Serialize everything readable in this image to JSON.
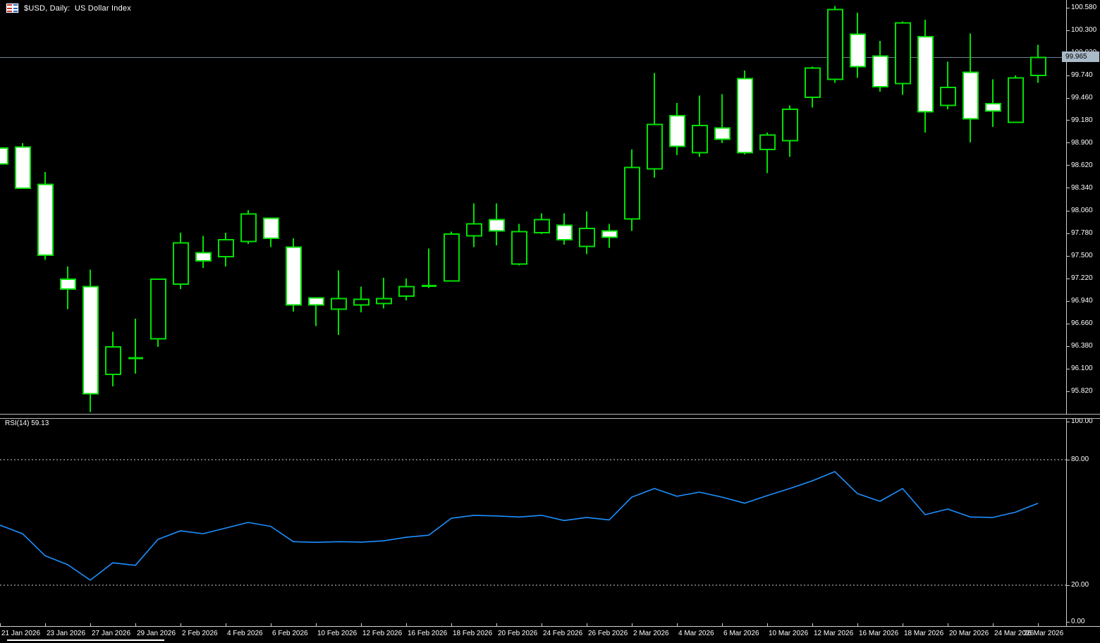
{
  "header": {
    "title": "$USD, Daily:  US Dollar Index"
  },
  "price_tag": "99.965",
  "rsi_label": "RSI(14) 59.13",
  "colors": {
    "background": "#000000",
    "candle_outline": "#00e000",
    "bull_fill": "#000000",
    "bear_fill": "#ffffff",
    "rsi_line": "#1e90ff",
    "level_line": "#d0d0d0",
    "price_line": "#708090",
    "axis_text": "#ffffff",
    "tag_bg": "#a9bac9"
  },
  "chart_data": {
    "type": "candlestick",
    "symbol": "$USD",
    "timeframe": "Daily",
    "title": "US Dollar Index",
    "ylim": [
      95.56,
      100.72
    ],
    "grid": false,
    "current_price": 99.965,
    "price_axis_ticks": [
      "100.580",
      "100.300",
      "100.020",
      "99.740",
      "99.460",
      "99.180",
      "98.900",
      "98.620",
      "98.340",
      "98.060",
      "97.780",
      "97.500",
      "97.220",
      "96.940",
      "96.660",
      "96.380",
      "96.100",
      "95.820"
    ],
    "x_axis_labels": [
      "21 Jan 2026",
      "23 Jan 2026",
      "27 Jan 2026",
      "29 Jan 2026",
      "2 Feb 2026",
      "4 Feb 2026",
      "6 Feb 2026",
      "10 Feb 2026",
      "12 Feb 2026",
      "16 Feb 2026",
      "18 Feb 2026",
      "20 Feb 2026",
      "24 Feb 2026",
      "26 Feb 2026",
      "2 Mar 2026",
      "4 Mar 2026",
      "6 Mar 2026",
      "10 Mar 2026",
      "12 Mar 2026",
      "16 Mar 2026",
      "18 Mar 2026",
      "20 Mar 2026",
      "24 Mar 2026",
      "26 Mar 2026"
    ],
    "bars": [
      {
        "date": "21 Jan 2026",
        "o": 98.84,
        "h": 98.84,
        "l": 98.64,
        "c": 98.64
      },
      {
        "date": "22 Jan 2026",
        "o": 98.85,
        "h": 98.9,
        "l": 98.34,
        "c": 98.34
      },
      {
        "date": "23 Jan 2026",
        "o": 98.39,
        "h": 98.54,
        "l": 97.45,
        "c": 97.51
      },
      {
        "date": "26 Jan 2026",
        "o": 97.21,
        "h": 97.37,
        "l": 96.84,
        "c": 97.09
      },
      {
        "date": "27 Jan 2026",
        "o": 97.12,
        "h": 97.33,
        "l": 95.56,
        "c": 95.79
      },
      {
        "date": "28 Jan 2026",
        "o": 96.03,
        "h": 96.56,
        "l": 95.88,
        "c": 96.37
      },
      {
        "date": "29 Jan 2026",
        "o": 96.23,
        "h": 96.72,
        "l": 96.04,
        "c": 96.23
      },
      {
        "date": "30 Jan 2026",
        "o": 96.47,
        "h": 97.21,
        "l": 96.37,
        "c": 97.21
      },
      {
        "date": "2 Feb 2026",
        "o": 97.15,
        "h": 97.79,
        "l": 97.09,
        "c": 97.66
      },
      {
        "date": "3 Feb 2026",
        "o": 97.54,
        "h": 97.75,
        "l": 97.35,
        "c": 97.44
      },
      {
        "date": "4 Feb 2026",
        "o": 97.49,
        "h": 97.79,
        "l": 97.37,
        "c": 97.7
      },
      {
        "date": "5 Feb 2026",
        "o": 97.68,
        "h": 98.07,
        "l": 97.65,
        "c": 98.02
      },
      {
        "date": "6 Feb 2026",
        "o": 97.97,
        "h": 97.97,
        "l": 97.61,
        "c": 97.72
      },
      {
        "date": "9 Feb 2026",
        "o": 97.61,
        "h": 97.72,
        "l": 96.81,
        "c": 96.89
      },
      {
        "date": "10 Feb 2026",
        "o": 96.98,
        "h": 96.98,
        "l": 96.63,
        "c": 96.89
      },
      {
        "date": "11 Feb 2026",
        "o": 96.84,
        "h": 97.32,
        "l": 96.52,
        "c": 96.97
      },
      {
        "date": "12 Feb 2026",
        "o": 96.89,
        "h": 97.12,
        "l": 96.8,
        "c": 96.96
      },
      {
        "date": "13 Feb 2026",
        "o": 96.91,
        "h": 97.23,
        "l": 96.85,
        "c": 96.97
      },
      {
        "date": "16 Feb 2026",
        "o": 97.0,
        "h": 97.22,
        "l": 96.95,
        "c": 97.12
      },
      {
        "date": "17 Feb 2026",
        "o": 97.13,
        "h": 97.59,
        "l": 97.1,
        "c": 97.13
      },
      {
        "date": "18 Feb 2026",
        "o": 97.19,
        "h": 97.8,
        "l": 97.19,
        "c": 97.77
      },
      {
        "date": "19 Feb 2026",
        "o": 97.75,
        "h": 98.15,
        "l": 97.61,
        "c": 97.9
      },
      {
        "date": "20 Feb 2026",
        "o": 97.95,
        "h": 98.15,
        "l": 97.63,
        "c": 97.81
      },
      {
        "date": "23 Feb 2026",
        "o": 97.4,
        "h": 97.9,
        "l": 97.38,
        "c": 97.8
      },
      {
        "date": "24 Feb 2026",
        "o": 97.79,
        "h": 98.03,
        "l": 97.77,
        "c": 97.95
      },
      {
        "date": "25 Feb 2026",
        "o": 97.88,
        "h": 98.03,
        "l": 97.64,
        "c": 97.7
      },
      {
        "date": "26 Feb 2026",
        "o": 97.62,
        "h": 98.05,
        "l": 97.52,
        "c": 97.84
      },
      {
        "date": "27 Feb 2026",
        "o": 97.81,
        "h": 97.9,
        "l": 97.6,
        "c": 97.73
      },
      {
        "date": "2 Mar 2026",
        "o": 97.96,
        "h": 98.82,
        "l": 97.81,
        "c": 98.6
      },
      {
        "date": "3 Mar 2026",
        "o": 98.58,
        "h": 99.77,
        "l": 98.47,
        "c": 99.13
      },
      {
        "date": "4 Mar 2026",
        "o": 99.24,
        "h": 99.4,
        "l": 98.75,
        "c": 98.86
      },
      {
        "date": "5 Mar 2026",
        "o": 98.78,
        "h": 99.49,
        "l": 98.73,
        "c": 99.12
      },
      {
        "date": "6 Mar 2026",
        "o": 99.09,
        "h": 99.51,
        "l": 98.9,
        "c": 98.95
      },
      {
        "date": "9 Mar 2026",
        "o": 99.7,
        "h": 99.8,
        "l": 98.76,
        "c": 98.78
      },
      {
        "date": "10 Mar 2026",
        "o": 98.82,
        "h": 99.03,
        "l": 98.53,
        "c": 99.0
      },
      {
        "date": "11 Mar 2026",
        "o": 98.93,
        "h": 99.37,
        "l": 98.73,
        "c": 99.32
      },
      {
        "date": "12 Mar 2026",
        "o": 99.47,
        "h": 99.85,
        "l": 99.34,
        "c": 99.83
      },
      {
        "date": "13 Mar 2026",
        "o": 99.69,
        "h": 100.6,
        "l": 99.65,
        "c": 100.56
      },
      {
        "date": "16 Mar 2026",
        "o": 100.25,
        "h": 100.52,
        "l": 99.71,
        "c": 99.85
      },
      {
        "date": "17 Mar 2026",
        "o": 99.98,
        "h": 100.17,
        "l": 99.54,
        "c": 99.6
      },
      {
        "date": "18 Mar 2026",
        "o": 99.64,
        "h": 100.41,
        "l": 99.5,
        "c": 100.39
      },
      {
        "date": "19 Mar 2026",
        "o": 100.22,
        "h": 100.43,
        "l": 99.03,
        "c": 99.29
      },
      {
        "date": "20 Mar 2026",
        "o": 99.37,
        "h": 99.91,
        "l": 99.32,
        "c": 99.59
      },
      {
        "date": "23 Mar 2026",
        "o": 99.78,
        "h": 100.26,
        "l": 98.91,
        "c": 99.2
      },
      {
        "date": "24 Mar 2026",
        "o": 99.39,
        "h": 99.69,
        "l": 99.1,
        "c": 99.3
      },
      {
        "date": "25 Mar 2026",
        "o": 99.16,
        "h": 99.74,
        "l": 99.16,
        "c": 99.71
      },
      {
        "date": "26 Mar 2026",
        "o": 99.74,
        "h": 100.12,
        "l": 99.65,
        "c": 99.965
      }
    ],
    "indicator": {
      "type": "line",
      "name": "RSI",
      "period": 14,
      "current": 59.13,
      "range": [
        0,
        100
      ],
      "levels": [
        80,
        20
      ],
      "axis_ticks": [
        "100.00",
        "80.00",
        "20.00",
        "0.00"
      ],
      "values": [
        48.7,
        44.6,
        34.1,
        29.8,
        22.4,
        30.7,
        29.5,
        41.9,
        46.0,
        44.6,
        47.3,
        50.0,
        48.1,
        40.8,
        40.5,
        40.8,
        40.6,
        41.2,
        42.9,
        43.9,
        52.0,
        53.4,
        53.1,
        52.6,
        53.4,
        50.9,
        52.4,
        51.2,
        62.1,
        66.2,
        62.5,
        64.5,
        62.1,
        59.2,
        62.8,
        66.2,
        69.9,
        74.3,
        63.8,
        60.1,
        66.2,
        53.7,
        56.4,
        52.6,
        52.4,
        54.9,
        59.13
      ]
    }
  }
}
